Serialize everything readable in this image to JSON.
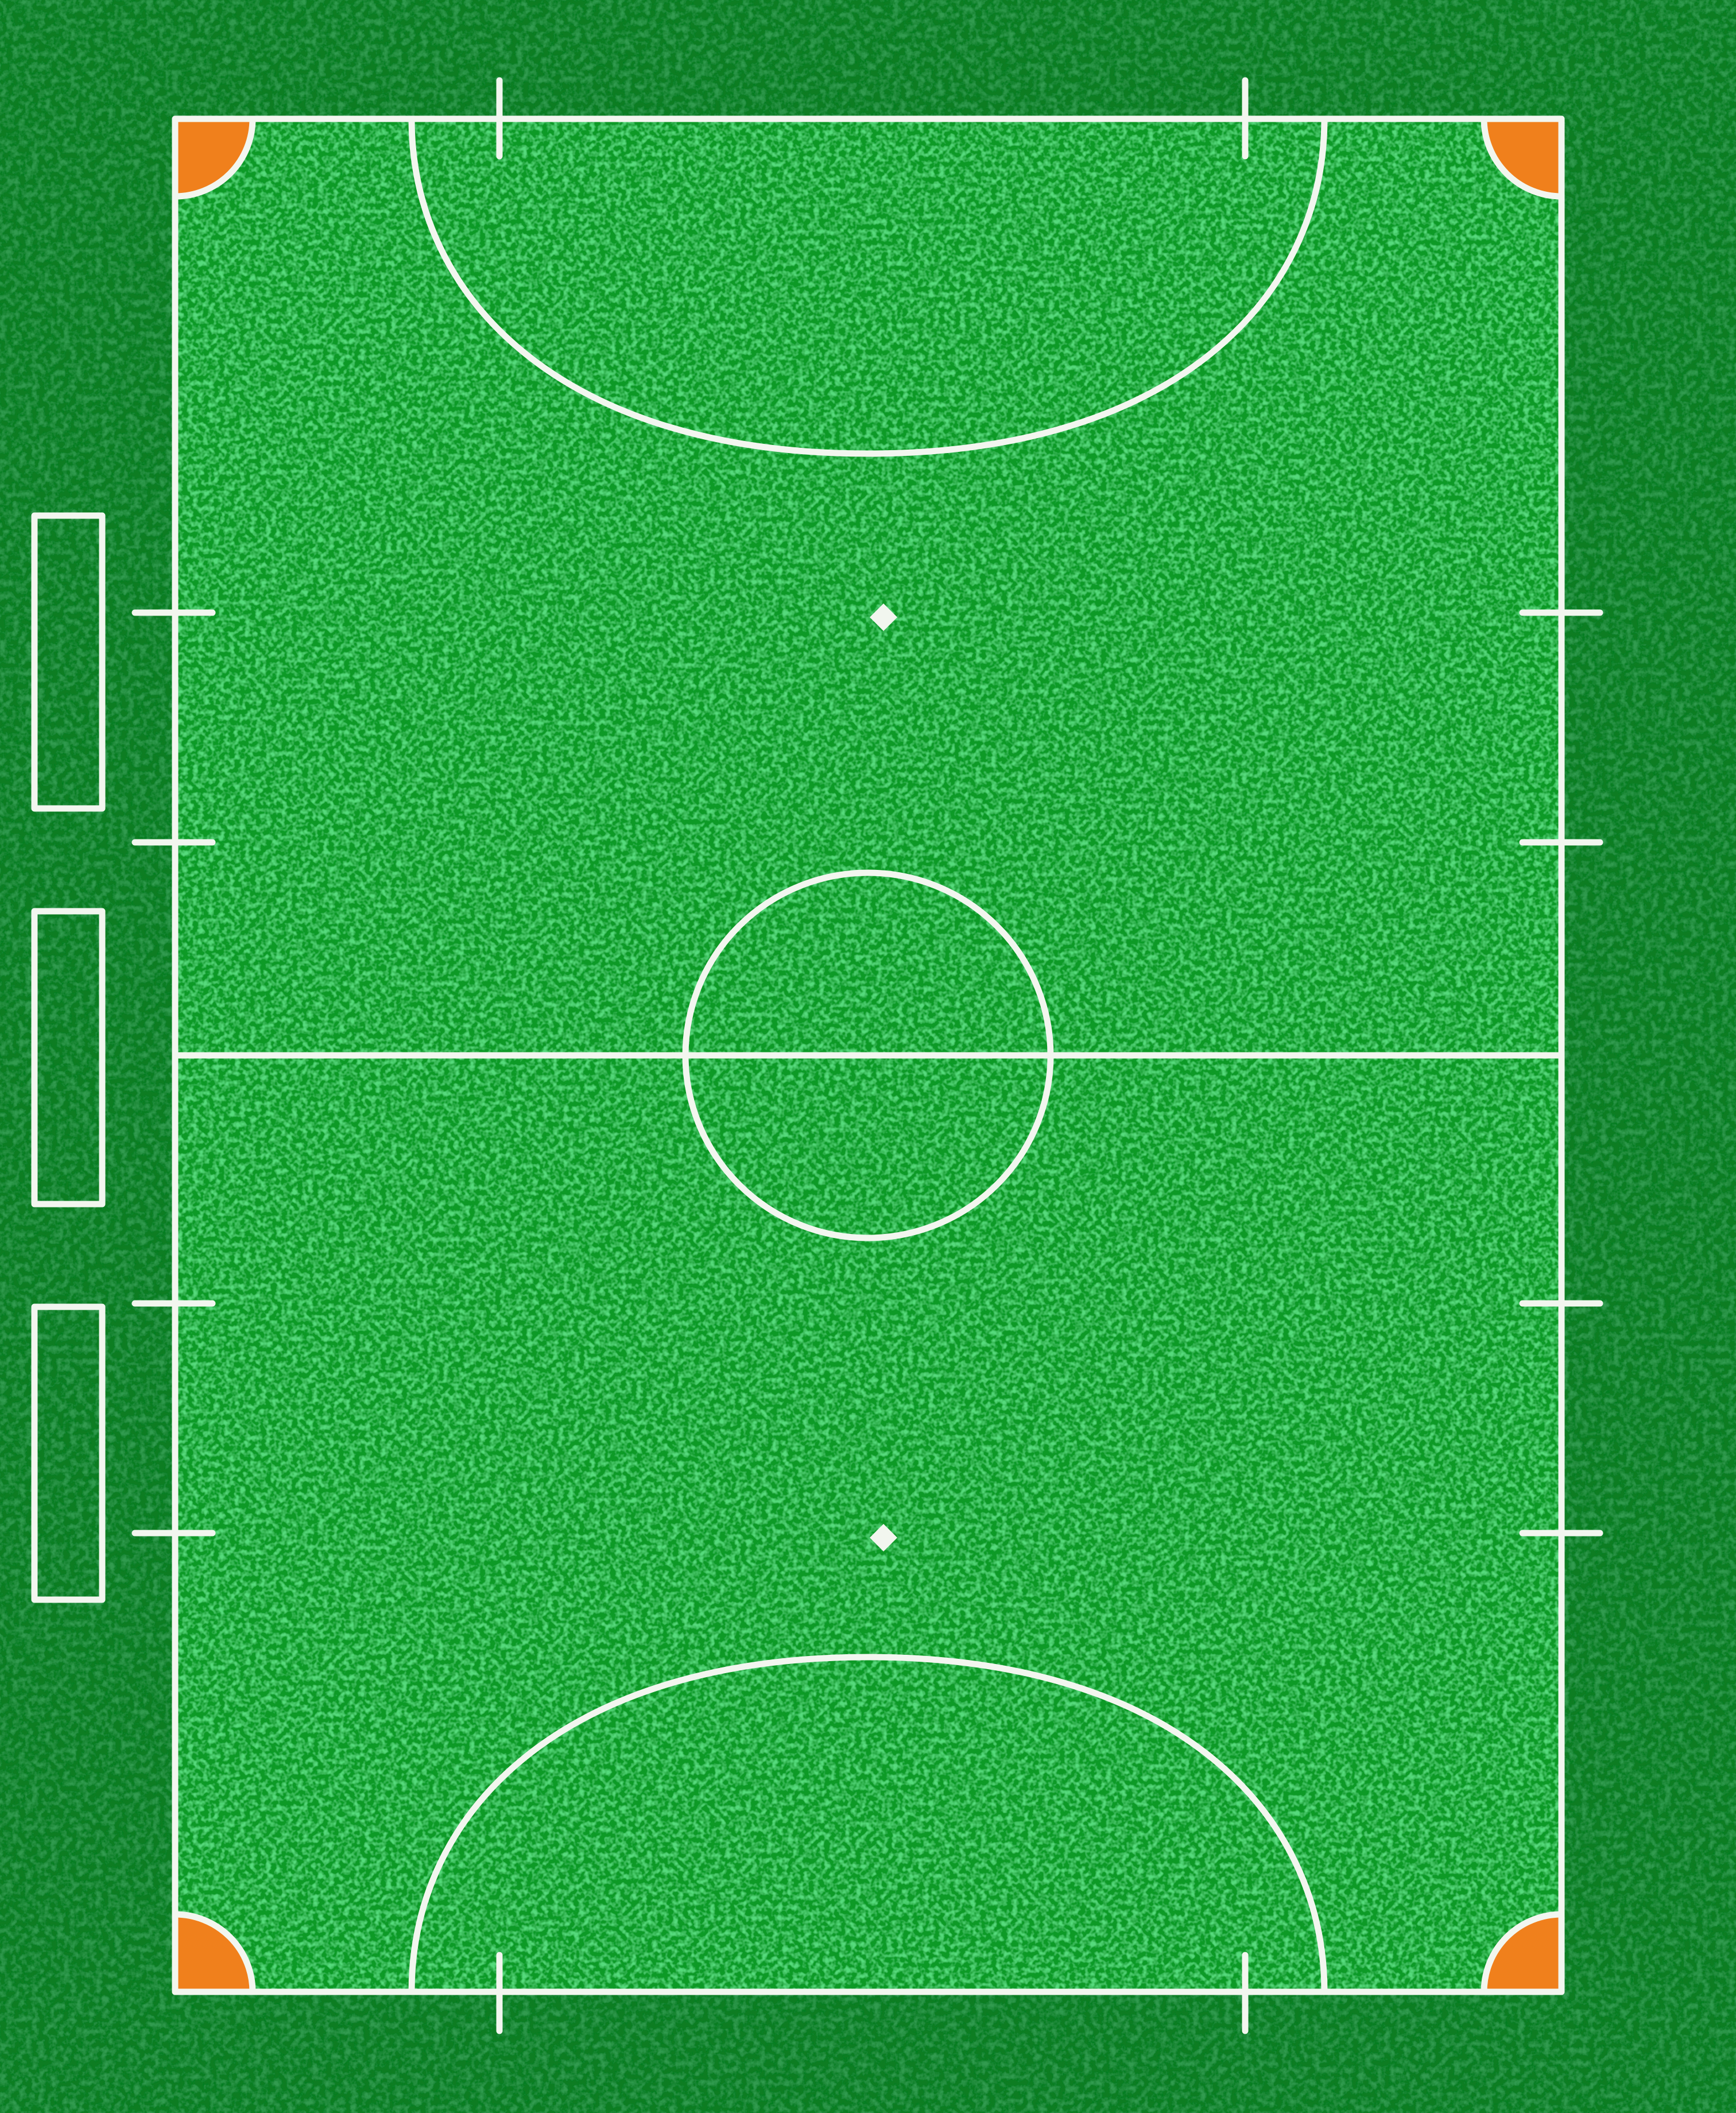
{
  "scene": {
    "subject": "futsal-court-top-view",
    "colors": {
      "outer_turf": "#0f7d22",
      "court_turf": "#0f9a26",
      "turf_dark_fleck": "#0a5e17",
      "turf_light_fleck": "#16b232",
      "line": "#f2f6ef",
      "corner_fill": "#f0801c",
      "corner_fill_dark": "#d96a12"
    },
    "features": {
      "corner_arcs": 4,
      "penalty_arcs": 2,
      "penalty_spots": 2,
      "center_circle": 1,
      "halfway_line": 1,
      "substitution_zone_boxes": 3,
      "side_marks_per_touchline": 4,
      "goal_line_marks_per_end": 2
    }
  }
}
